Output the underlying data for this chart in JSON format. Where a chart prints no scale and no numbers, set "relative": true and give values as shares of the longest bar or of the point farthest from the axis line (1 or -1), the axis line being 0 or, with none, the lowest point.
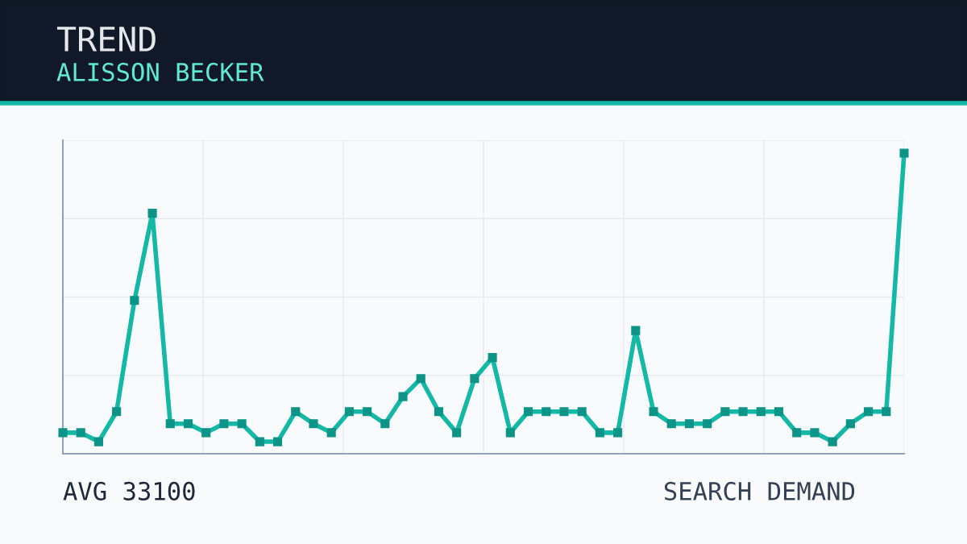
{
  "chart_data": {
    "type": "line",
    "title": "TREND",
    "subtitle": "ALISSON BECKER",
    "relative": true,
    "grid": true,
    "legend": false,
    "marker": "square",
    "line_style": "solid",
    "tick_labels": false,
    "categories": [
      null,
      null,
      null,
      null,
      null,
      null,
      null,
      null,
      null,
      null,
      null,
      null,
      null,
      null,
      null,
      null,
      null,
      null,
      null,
      null,
      null,
      null,
      null,
      null,
      null,
      null,
      null,
      null,
      null,
      null,
      null,
      null,
      null,
      null,
      null,
      null,
      null,
      null,
      null,
      null,
      null,
      null,
      null,
      null,
      null,
      null,
      null,
      null
    ],
    "series": [
      {
        "color": "#14b8a6",
        "values": [
          0.07,
          0.07,
          0.04,
          0.14,
          0.51,
          0.8,
          0.1,
          0.1,
          0.07,
          0.1,
          0.1,
          0.04,
          0.04,
          0.14,
          0.1,
          0.07,
          0.14,
          0.14,
          0.1,
          0.19,
          0.25,
          0.14,
          0.07,
          0.25,
          0.32,
          0.07,
          0.14,
          0.14,
          0.14,
          0.14,
          0.07,
          0.07,
          0.41,
          0.14,
          0.1,
          0.1,
          0.1,
          0.14,
          0.14,
          0.14,
          0.14,
          0.07,
          0.07,
          0.04,
          0.1,
          0.14,
          0.14,
          1
        ]
      }
    ],
    "annotations": [
      "AVG 33100",
      "SEARCH DEMAND"
    ]
  }
}
